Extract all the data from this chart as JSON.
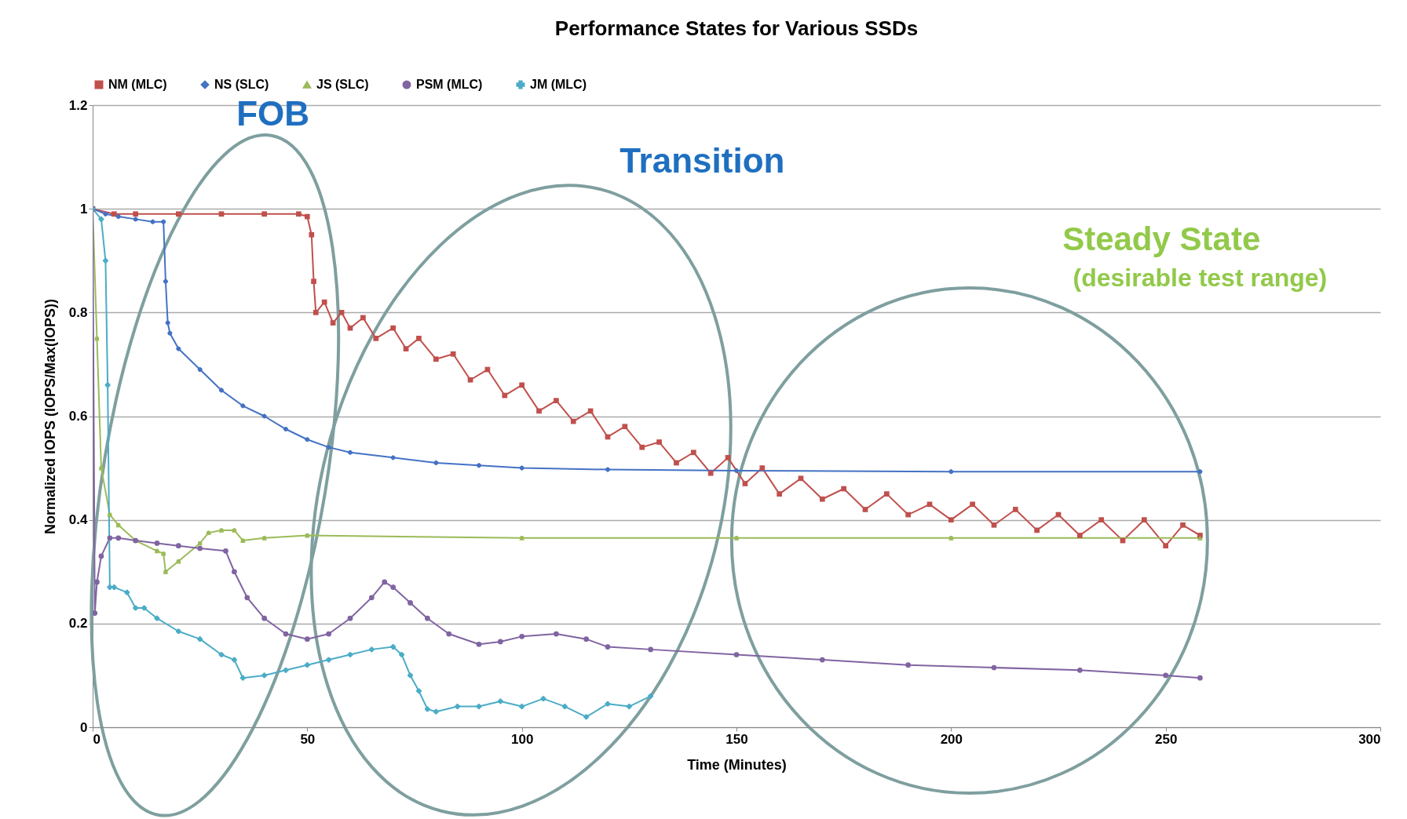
{
  "chart_data": {
    "type": "line",
    "title": "Performance States for Various SSDs",
    "xlabel": "Time (Minutes)",
    "ylabel": "Normalized IOPS (IOPS/Max(IOPS))",
    "xlim": [
      0,
      300
    ],
    "xticks": [
      0,
      50,
      100,
      150,
      200,
      250,
      300
    ],
    "ylim": [
      0,
      1.2
    ],
    "yticks": [
      0,
      0.2,
      0.4,
      0.6,
      0.8,
      1,
      1.2
    ],
    "grid": "y",
    "legend": "top",
    "annotations": [
      "FOB",
      "Transition",
      "Steady State",
      "(desirable test range)"
    ],
    "series": [
      {
        "name": "NM (MLC)",
        "color": "#c0504d",
        "marker": "square",
        "x": [
          0,
          5,
          10,
          20,
          30,
          40,
          48,
          50,
          51,
          51.5,
          52,
          54,
          56,
          58,
          60,
          63,
          66,
          70,
          73,
          76,
          80,
          84,
          88,
          92,
          96,
          100,
          104,
          108,
          112,
          116,
          120,
          124,
          128,
          132,
          136,
          140,
          144,
          148,
          152,
          156,
          160,
          165,
          170,
          175,
          180,
          185,
          190,
          195,
          200,
          205,
          210,
          215,
          220,
          225,
          230,
          235,
          240,
          245,
          250,
          254,
          258
        ],
        "values": [
          1,
          0.99,
          0.99,
          0.99,
          0.99,
          0.99,
          0.99,
          0.985,
          0.95,
          0.86,
          0.8,
          0.82,
          0.78,
          0.8,
          0.77,
          0.79,
          0.75,
          0.77,
          0.73,
          0.75,
          0.71,
          0.72,
          0.67,
          0.69,
          0.64,
          0.66,
          0.61,
          0.63,
          0.59,
          0.61,
          0.56,
          0.58,
          0.54,
          0.55,
          0.51,
          0.53,
          0.49,
          0.52,
          0.47,
          0.5,
          0.45,
          0.48,
          0.44,
          0.46,
          0.42,
          0.45,
          0.41,
          0.43,
          0.4,
          0.43,
          0.39,
          0.42,
          0.38,
          0.41,
          0.37,
          0.4,
          0.36,
          0.4,
          0.35,
          0.39,
          0.37
        ]
      },
      {
        "name": "NS (SLC)",
        "color": "#4472c4",
        "marker": "diamond",
        "x": [
          0,
          3,
          6,
          10,
          14,
          16.5,
          17,
          17.5,
          18,
          20,
          25,
          30,
          35,
          40,
          45,
          50,
          55,
          60,
          70,
          80,
          90,
          100,
          120,
          150,
          200,
          258
        ],
        "values": [
          1,
          0.99,
          0.985,
          0.98,
          0.975,
          0.975,
          0.86,
          0.78,
          0.76,
          0.73,
          0.69,
          0.65,
          0.62,
          0.6,
          0.575,
          0.555,
          0.54,
          0.53,
          0.52,
          0.51,
          0.505,
          0.5,
          0.497,
          0.495,
          0.493,
          0.493
        ]
      },
      {
        "name": "JS (SLC)",
        "color": "#9bbb59",
        "marker": "triangle",
        "x": [
          0,
          1,
          2,
          4,
          6,
          10,
          15,
          16.5,
          17,
          20,
          25,
          27,
          30,
          33,
          35,
          40,
          50,
          100,
          150,
          200,
          258
        ],
        "values": [
          1,
          0.75,
          0.5,
          0.41,
          0.39,
          0.36,
          0.34,
          0.335,
          0.3,
          0.32,
          0.355,
          0.375,
          0.38,
          0.38,
          0.36,
          0.365,
          0.37,
          0.365,
          0.365,
          0.365,
          0.365
        ]
      },
      {
        "name": "PSM (MLC)",
        "color": "#8064a2",
        "marker": "circle",
        "x": [
          0,
          0.5,
          1,
          2,
          4,
          6,
          10,
          15,
          20,
          25,
          31,
          33,
          36,
          40,
          45,
          50,
          55,
          60,
          65,
          68,
          70,
          74,
          78,
          83,
          90,
          95,
          100,
          108,
          115,
          120,
          130,
          150,
          170,
          190,
          210,
          230,
          250,
          258
        ],
        "values": [
          1,
          0.22,
          0.28,
          0.33,
          0.365,
          0.365,
          0.36,
          0.355,
          0.35,
          0.345,
          0.34,
          0.3,
          0.25,
          0.21,
          0.18,
          0.17,
          0.18,
          0.21,
          0.25,
          0.28,
          0.27,
          0.24,
          0.21,
          0.18,
          0.16,
          0.165,
          0.175,
          0.18,
          0.17,
          0.155,
          0.15,
          0.14,
          0.13,
          0.12,
          0.115,
          0.11,
          0.1,
          0.095
        ]
      },
      {
        "name": "JM (MLC)",
        "color": "#4bacc6",
        "marker": "cross",
        "x": [
          0,
          2,
          3,
          3.5,
          4,
          5,
          8,
          10,
          12,
          15,
          20,
          25,
          30,
          33,
          35,
          40,
          45,
          50,
          55,
          60,
          65,
          70,
          72,
          74,
          76,
          78,
          80,
          85,
          90,
          95,
          100,
          105,
          110,
          115,
          120,
          125,
          130
        ],
        "values": [
          1,
          0.98,
          0.9,
          0.66,
          0.27,
          0.27,
          0.26,
          0.23,
          0.23,
          0.21,
          0.185,
          0.17,
          0.14,
          0.13,
          0.095,
          0.1,
          0.11,
          0.12,
          0.13,
          0.14,
          0.15,
          0.155,
          0.14,
          0.1,
          0.07,
          0.035,
          0.03,
          0.04,
          0.04,
          0.05,
          0.04,
          0.055,
          0.04,
          0.02,
          0.045,
          0.04,
          0.06
        ]
      }
    ]
  }
}
